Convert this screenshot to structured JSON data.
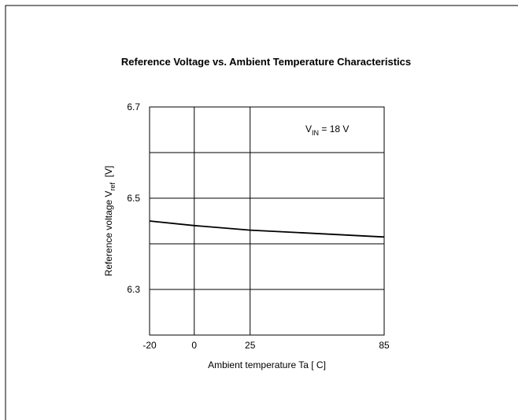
{
  "chart_data": {
    "type": "line",
    "title": "Reference Voltage vs. Ambient Temperature Characteristics",
    "x_label": "Ambient temperature Ta [ C]",
    "y_label": [
      "Reference voltage V",
      "ref",
      "  [V]"
    ],
    "annotation": [
      "V",
      "IN",
      " = 18 V"
    ],
    "x": [
      -20,
      0,
      25,
      85
    ],
    "series": [
      {
        "color": "#000000",
        "values": [
          6.45,
          6.44,
          6.43,
          6.415
        ]
      }
    ],
    "xlim": [
      -20,
      85
    ],
    "xticks": [
      -20,
      0,
      25,
      85
    ],
    "ylim": [
      6.2,
      6.7
    ],
    "yticks": [
      6.3,
      6.5,
      6.7
    ],
    "ygrid": [
      6.4,
      6.6
    ],
    "grid": true
  }
}
